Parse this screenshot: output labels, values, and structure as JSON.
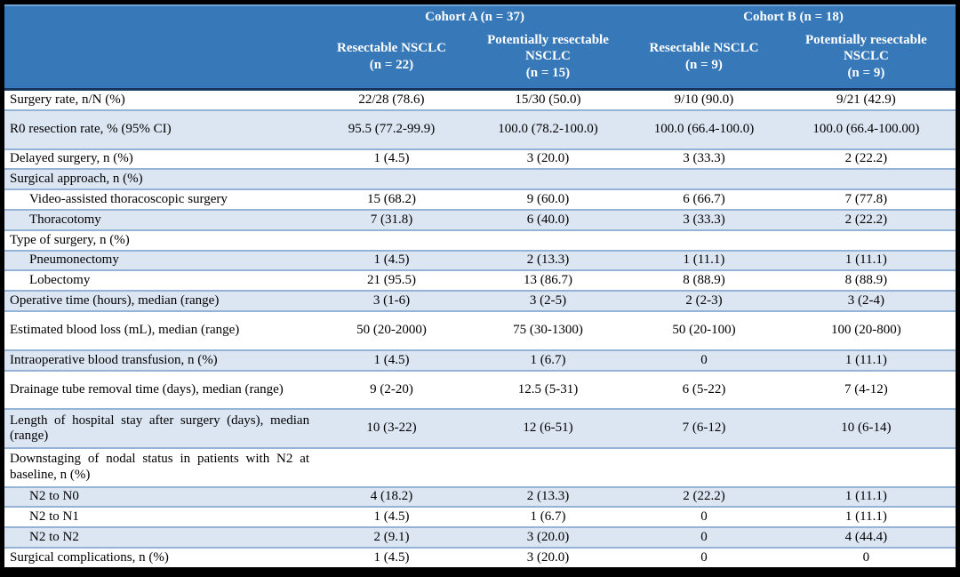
{
  "table": {
    "cohort_headers": [
      {
        "label": "Cohort A (n = 37)"
      },
      {
        "label": "Cohort B (n = 18)"
      }
    ],
    "column_headers": [
      {
        "name": "Resectable NSCLC",
        "n": "(n = 22)"
      },
      {
        "name": "Potentially resectable NSCLC",
        "n": "(n = 15)"
      },
      {
        "name": "Resectable NSCLC",
        "n": "(n = 9)"
      },
      {
        "name": "Potentially resectable NSCLC",
        "n": "(n = 9)"
      }
    ],
    "rows": [
      {
        "label": "Surgery rate, n/N (%)",
        "values": [
          "22/28 (78.6)",
          "15/30 (50.0)",
          "9/10 (90.0)",
          "9/21 (42.9)"
        ]
      },
      {
        "label": "R0 resection rate, % (95% CI)",
        "tall": true,
        "values": [
          "95.5 (77.2-99.9)",
          "100.0 (78.2-100.0)",
          "100.0 (66.4-100.0)",
          "100.0 (66.4-100.00)"
        ]
      },
      {
        "label": "Delayed surgery, n (%)",
        "values": [
          "1 (4.5)",
          "3 (20.0)",
          "3 (33.3)",
          "2 (22.2)"
        ]
      },
      {
        "label": "Surgical approach, n (%)",
        "values": [
          "",
          "",
          "",
          ""
        ]
      },
      {
        "label": "Video-assisted thoracoscopic surgery",
        "indent": true,
        "values": [
          "15 (68.2)",
          "9 (60.0)",
          "6 (66.7)",
          "7 (77.8)"
        ]
      },
      {
        "label": "Thoracotomy",
        "indent": true,
        "values": [
          "7 (31.8)",
          "6 (40.0)",
          "3 (33.3)",
          "2 (22.2)"
        ]
      },
      {
        "label": "Type of surgery, n (%)",
        "values": [
          "",
          "",
          "",
          ""
        ]
      },
      {
        "label": "Pneumonectomy",
        "indent": true,
        "values": [
          "1 (4.5)",
          "2 (13.3)",
          "1 (11.1)",
          "1 (11.1)"
        ]
      },
      {
        "label": "Lobectomy",
        "indent": true,
        "values": [
          "21 (95.5)",
          "13 (86.7)",
          "8 (88.9)",
          "8 (88.9)"
        ]
      },
      {
        "label": "Operative time (hours), median (range)",
        "values": [
          "3 (1-6)",
          "3 (2-5)",
          "2 (2-3)",
          "3 (2-4)"
        ]
      },
      {
        "label": "Estimated blood loss (mL), median (range)",
        "tall": true,
        "values": [
          "50 (20-2000)",
          "75 (30-1300)",
          "50 (20-100)",
          "100 (20-800)"
        ]
      },
      {
        "label": "Intraoperative blood transfusion, n (%)",
        "values": [
          "1 (4.5)",
          "1 (6.7)",
          "0",
          "1 (11.1)"
        ]
      },
      {
        "label": "Drainage tube removal time (days), median (range)",
        "tall": true,
        "values": [
          "9 (2-20)",
          "12.5 (5-31)",
          "6 (5-22)",
          "7 (4-12)"
        ]
      },
      {
        "label": "Length of hospital stay after surgery (days), median (range)",
        "tall": true,
        "values": [
          "10 (3-22)",
          "12 (6-51)",
          "7 (6-12)",
          "10 (6-14)"
        ]
      },
      {
        "label": "Downstaging of nodal status in patients with N2 at baseline, n (%)",
        "tall": true,
        "values": [
          "",
          "",
          "",
          ""
        ]
      },
      {
        "label": "N2 to N0",
        "indent": true,
        "values": [
          "4 (18.2)",
          "2 (13.3)",
          "2 (22.2)",
          "1 (11.1)"
        ]
      },
      {
        "label": "N2 to N1",
        "indent": true,
        "values": [
          "1 (4.5)",
          "1 (6.7)",
          "0",
          "1 (11.1)"
        ]
      },
      {
        "label": "N2 to N2",
        "indent": true,
        "values": [
          "2 (9.1)",
          "3 (20.0)",
          "0",
          "4 (44.4)"
        ]
      },
      {
        "label": "Surgical complications, n (%)",
        "values": [
          "1 (4.5)",
          "3 (20.0)",
          "0",
          "0"
        ]
      }
    ]
  },
  "colors": {
    "header_blue": "#3678b8",
    "shaded_row": "#dce6f2",
    "row_border": "#95b3d7",
    "header_underline": "#17365d",
    "frame": "#000000",
    "header_text": "#ffffff"
  }
}
